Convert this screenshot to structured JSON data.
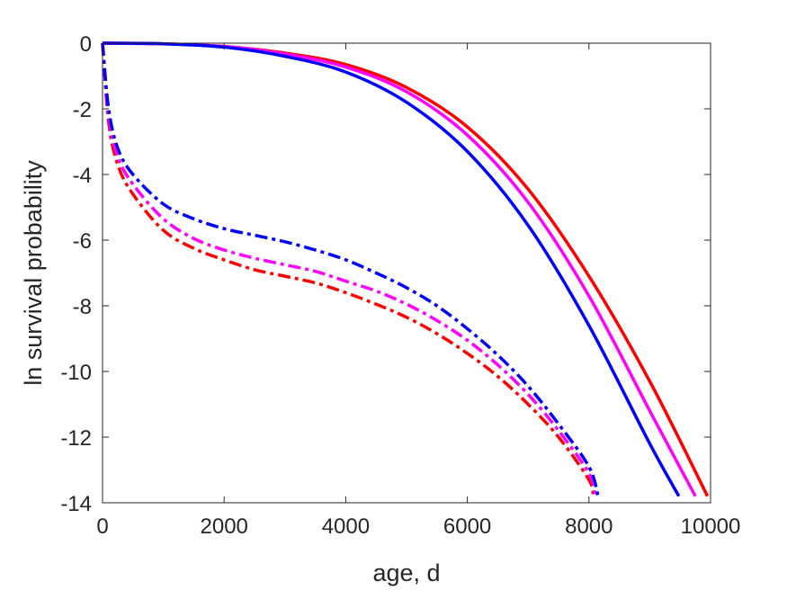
{
  "chart_data": {
    "type": "line",
    "title": "",
    "xlabel": "age, d",
    "ylabel": "ln survival probability",
    "xlim": [
      0,
      10000
    ],
    "ylim": [
      -14,
      0
    ],
    "xticks": [
      0,
      2000,
      4000,
      6000,
      8000,
      10000
    ],
    "yticks": [
      0,
      -2,
      -4,
      -6,
      -8,
      -10,
      -12,
      -14
    ],
    "xtick_labels": [
      "0",
      "2000",
      "4000",
      "6000",
      "8000",
      "10000"
    ],
    "ytick_labels": [
      "0",
      "-2",
      "-4",
      "-6",
      "-8",
      "-10",
      "-12",
      "-14"
    ],
    "grid": false,
    "legend": "none",
    "series": [
      {
        "color": "#ff0000",
        "style": "solid",
        "x": [
          0,
          1000,
          2000,
          3000,
          4000,
          5000,
          6000,
          7000,
          8000,
          9000,
          9950
        ],
        "y": [
          0,
          -0.02,
          -0.1,
          -0.3,
          -0.65,
          -1.35,
          -2.55,
          -4.45,
          -7.1,
          -10.3,
          -13.8
        ]
      },
      {
        "color": "#ff00ff",
        "style": "solid",
        "x": [
          0,
          1000,
          2000,
          3000,
          4000,
          5000,
          6000,
          7000,
          8000,
          9000,
          9750
        ],
        "y": [
          0,
          -0.02,
          -0.1,
          -0.33,
          -0.73,
          -1.48,
          -2.8,
          -4.85,
          -7.7,
          -11.2,
          -13.8
        ]
      },
      {
        "color": "#0000ff",
        "style": "solid",
        "x": [
          0,
          1000,
          2000,
          3000,
          4000,
          5000,
          6000,
          7000,
          8000,
          9000,
          9480
        ],
        "y": [
          0,
          -0.02,
          -0.12,
          -0.4,
          -0.88,
          -1.8,
          -3.3,
          -5.55,
          -8.6,
          -12.2,
          -13.8
        ]
      },
      {
        "color": "#ff0000",
        "style": "dashdot",
        "x": [
          0,
          100,
          250,
          500,
          1000,
          1500,
          2000,
          2500,
          3000,
          3500,
          4000,
          4500,
          5000,
          5500,
          6000,
          6500,
          7000,
          7500,
          8000,
          8070
        ],
        "y": [
          0,
          -2.4,
          -3.7,
          -4.6,
          -5.7,
          -6.25,
          -6.6,
          -6.9,
          -7.1,
          -7.3,
          -7.6,
          -7.95,
          -8.35,
          -8.85,
          -9.45,
          -10.15,
          -11.0,
          -12.0,
          -13.3,
          -13.8
        ]
      },
      {
        "color": "#ff00ff",
        "style": "dashdot",
        "x": [
          0,
          100,
          250,
          500,
          1000,
          1500,
          2000,
          2500,
          3000,
          3500,
          4000,
          4500,
          5000,
          5500,
          6000,
          6500,
          7000,
          7500,
          8000,
          8100
        ],
        "y": [
          0,
          -2.2,
          -3.45,
          -4.3,
          -5.35,
          -5.95,
          -6.3,
          -6.55,
          -6.75,
          -6.95,
          -7.25,
          -7.55,
          -7.95,
          -8.45,
          -9.05,
          -9.8,
          -10.7,
          -11.8,
          -13.1,
          -13.8
        ]
      },
      {
        "color": "#0000ff",
        "style": "dashdot",
        "x": [
          0,
          100,
          250,
          500,
          1000,
          1500,
          2000,
          2500,
          3000,
          3500,
          4000,
          4500,
          5000,
          5500,
          6000,
          6500,
          7000,
          7500,
          8000,
          8150
        ],
        "y": [
          0,
          -2.0,
          -3.2,
          -4.0,
          -4.9,
          -5.35,
          -5.65,
          -5.85,
          -6.05,
          -6.3,
          -6.6,
          -7.0,
          -7.45,
          -8.0,
          -8.7,
          -9.5,
          -10.45,
          -11.6,
          -12.9,
          -13.8
        ]
      }
    ]
  }
}
